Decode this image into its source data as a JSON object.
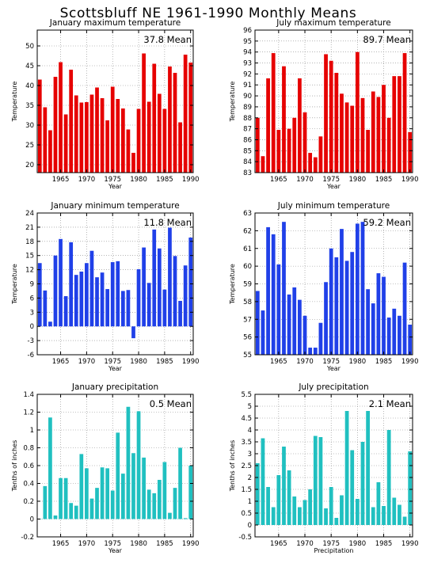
{
  "figure_title": "Scottsbluff NE  1961-1990 Monthly Means",
  "chart_data": [
    {
      "type": "bar",
      "title": "January maximum temperature",
      "xlabel": "Year",
      "ylabel": "Temperature",
      "mean_label": "37.8 Mean",
      "color": "#e60000",
      "xlim": [
        1961,
        1990
      ],
      "ylim": [
        18,
        54
      ],
      "yticks": [
        20,
        25,
        30,
        35,
        40,
        45,
        50
      ],
      "xticks": [
        1965,
        1970,
        1975,
        1980,
        1985,
        1990
      ],
      "x": [
        1961,
        1962,
        1963,
        1964,
        1965,
        1966,
        1967,
        1968,
        1969,
        1970,
        1971,
        1972,
        1973,
        1974,
        1975,
        1976,
        1977,
        1978,
        1979,
        1980,
        1981,
        1982,
        1983,
        1984,
        1985,
        1986,
        1987,
        1988,
        1989,
        1990
      ],
      "values": [
        41.5,
        34.5,
        28.7,
        42.2,
        45.9,
        32.7,
        44.0,
        37.5,
        35.7,
        35.8,
        37.7,
        39.5,
        36.8,
        31.2,
        39.7,
        36.6,
        34.2,
        28.9,
        23.0,
        34.1,
        48.1,
        35.9,
        45.5,
        37.9,
        34.1,
        44.8,
        43.2,
        30.7,
        47.8,
        45.8
      ]
    },
    {
      "type": "bar",
      "title": "July maximum temperature",
      "xlabel": "Year",
      "ylabel": "Temperature",
      "mean_label": "89.7 Mean",
      "color": "#e60000",
      "xlim": [
        1961,
        1990
      ],
      "ylim": [
        83,
        96
      ],
      "yticks": [
        83,
        84,
        85,
        86,
        87,
        88,
        89,
        90,
        91,
        92,
        93,
        94,
        95,
        96
      ],
      "xticks": [
        1965,
        1970,
        1975,
        1980,
        1985,
        1990
      ],
      "x": [
        1961,
        1962,
        1963,
        1964,
        1965,
        1966,
        1967,
        1968,
        1969,
        1970,
        1971,
        1972,
        1973,
        1974,
        1975,
        1976,
        1977,
        1978,
        1979,
        1980,
        1981,
        1982,
        1983,
        1984,
        1985,
        1986,
        1987,
        1988,
        1989,
        1990
      ],
      "values": [
        88.0,
        84.5,
        91.6,
        93.9,
        86.9,
        92.7,
        87.0,
        88.0,
        91.6,
        88.5,
        84.8,
        84.4,
        86.3,
        93.8,
        93.2,
        92.1,
        90.2,
        89.4,
        89.1,
        94.0,
        89.8,
        86.9,
        90.4,
        89.9,
        91.0,
        88.0,
        91.8,
        91.8,
        93.9,
        86.7
      ]
    },
    {
      "type": "bar",
      "title": "January minimum temperature",
      "xlabel": "Year",
      "ylabel": "Temperature",
      "mean_label": "11.8 Mean",
      "color": "#2040e8",
      "xlim": [
        1961,
        1990
      ],
      "ylim": [
        -6,
        24
      ],
      "yticks": [
        -6,
        -3,
        0,
        3,
        6,
        9,
        12,
        15,
        18,
        21,
        24
      ],
      "xticks": [
        1965,
        1970,
        1975,
        1980,
        1985,
        1990
      ],
      "x": [
        1961,
        1962,
        1963,
        1964,
        1965,
        1966,
        1967,
        1968,
        1969,
        1970,
        1971,
        1972,
        1973,
        1974,
        1975,
        1976,
        1977,
        1978,
        1979,
        1980,
        1981,
        1982,
        1983,
        1984,
        1985,
        1986,
        1987,
        1988,
        1989,
        1990
      ],
      "values": [
        13.4,
        7.6,
        1.0,
        15.0,
        18.5,
        6.4,
        17.8,
        10.9,
        11.6,
        13.4,
        16.0,
        10.4,
        11.4,
        7.9,
        13.6,
        13.8,
        7.5,
        7.7,
        -2.5,
        12.1,
        16.7,
        9.2,
        20.5,
        16.5,
        7.8,
        20.9,
        14.9,
        5.4,
        12.9,
        18.8
      ]
    },
    {
      "type": "bar",
      "title": "July minimum temperature",
      "xlabel": "Year",
      "ylabel": "Temperature",
      "mean_label": "59.2 Mean",
      "color": "#2040e8",
      "xlim": [
        1961,
        1990
      ],
      "ylim": [
        55,
        63
      ],
      "yticks": [
        55,
        56,
        57,
        58,
        59,
        60,
        61,
        62,
        63
      ],
      "xticks": [
        1965,
        1970,
        1975,
        1980,
        1985,
        1990
      ],
      "x": [
        1961,
        1962,
        1963,
        1964,
        1965,
        1966,
        1967,
        1968,
        1969,
        1970,
        1971,
        1972,
        1973,
        1974,
        1975,
        1976,
        1977,
        1978,
        1979,
        1980,
        1981,
        1982,
        1983,
        1984,
        1985,
        1986,
        1987,
        1988,
        1989,
        1990
      ],
      "values": [
        58.6,
        57.5,
        62.2,
        61.8,
        60.1,
        62.5,
        58.4,
        58.8,
        58.1,
        57.2,
        55.4,
        55.4,
        56.8,
        59.1,
        61.0,
        60.5,
        62.1,
        60.3,
        60.8,
        62.4,
        62.5,
        58.7,
        57.9,
        59.6,
        59.4,
        57.1,
        57.6,
        57.2,
        60.2,
        56.7
      ]
    },
    {
      "type": "bar",
      "title": "January precipitation",
      "xlabel": "Year",
      "ylabel": "Tenths of inches",
      "mean_label": "0.5 Mean",
      "color": "#20c0c0",
      "xlim": [
        1961,
        1990
      ],
      "ylim": [
        -0.2,
        1.4
      ],
      "yticks": [
        -0.2,
        0,
        0.2,
        0.4,
        0.6,
        0.8,
        1,
        1.2,
        1.4
      ],
      "xticks": [
        1965,
        1970,
        1975,
        1980,
        1985,
        1990
      ],
      "x": [
        1961,
        1962,
        1963,
        1964,
        1965,
        1966,
        1967,
        1968,
        1969,
        1970,
        1971,
        1972,
        1973,
        1974,
        1975,
        1976,
        1977,
        1978,
        1979,
        1980,
        1981,
        1982,
        1983,
        1984,
        1985,
        1986,
        1987,
        1988,
        1989,
        1990
      ],
      "values": [
        0.0,
        0.37,
        1.14,
        0.04,
        0.46,
        0.46,
        0.18,
        0.15,
        0.73,
        0.57,
        0.23,
        0.35,
        0.58,
        0.57,
        0.32,
        0.97,
        0.51,
        1.26,
        0.74,
        1.21,
        0.69,
        0.33,
        0.29,
        0.44,
        0.64,
        0.07,
        0.35,
        0.8,
        0.01,
        0.6
      ]
    },
    {
      "type": "bar",
      "title": "July precipitation",
      "xlabel": "Precipitation",
      "ylabel": "Tenths of inches",
      "mean_label": "2.1 Mean",
      "color": "#20c0c0",
      "xlim": [
        1961,
        1990
      ],
      "ylim": [
        -0.5,
        5.5
      ],
      "yticks": [
        -0.5,
        0,
        0.5,
        1,
        1.5,
        2,
        2.5,
        3,
        3.5,
        4,
        4.5,
        5,
        5.5
      ],
      "xticks": [
        1965,
        1970,
        1975,
        1980,
        1985,
        1990
      ],
      "x": [
        1961,
        1962,
        1963,
        1964,
        1965,
        1966,
        1967,
        1968,
        1969,
        1970,
        1971,
        1972,
        1973,
        1974,
        1975,
        1976,
        1977,
        1978,
        1979,
        1980,
        1981,
        1982,
        1983,
        1984,
        1985,
        1986,
        1987,
        1988,
        1989,
        1990
      ],
      "values": [
        2.6,
        3.65,
        1.6,
        0.75,
        2.1,
        3.3,
        2.3,
        1.2,
        0.75,
        1.05,
        1.5,
        3.75,
        3.7,
        0.7,
        1.6,
        0.3,
        1.25,
        4.8,
        3.15,
        1.1,
        3.5,
        4.8,
        0.75,
        1.8,
        0.8,
        4.0,
        1.15,
        0.85,
        0.35,
        3.1
      ]
    }
  ]
}
